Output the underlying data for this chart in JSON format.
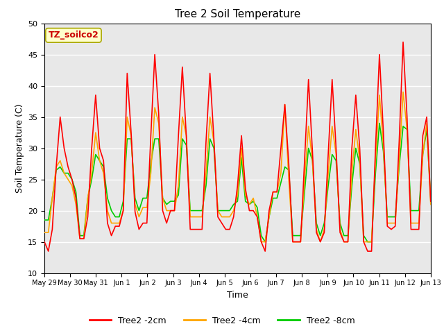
{
  "title": "Tree 2 Soil Temperature",
  "xlabel": "Time",
  "ylabel": "Soil Temperature (C)",
  "ylim": [
    10,
    50
  ],
  "annotation_text": "TZ_soilco2",
  "annotation_color": "#cc0000",
  "annotation_bg": "#ffffcc",
  "bg_color": "#e8e8e8",
  "grid_color": "#ffffff",
  "series": {
    "Tree2 -2cm": {
      "color": "#ff0000",
      "lw": 1.2
    },
    "Tree2 -4cm": {
      "color": "#ffa500",
      "lw": 1.2
    },
    "Tree2 -8cm": {
      "color": "#00cc00",
      "lw": 1.2
    }
  },
  "x_tick_labels": [
    "May 29",
    "May 30",
    "May 31",
    "Jun 1",
    "Jun 2",
    "Jun 3",
    "Jun 4",
    "Jun 5",
    "Jun 6",
    "Jun 7",
    "Jun 8",
    "Jun 9",
    "Jun 10",
    "Jun 11",
    "Jun 12",
    "Jun 13"
  ],
  "x_tick_positions": [
    0,
    1,
    2,
    3,
    4,
    5,
    6,
    7,
    8,
    9,
    10,
    11,
    12,
    13,
    14,
    15
  ],
  "data_2cm": [
    15,
    13.5,
    17,
    27,
    35,
    30,
    27,
    25,
    22,
    15.5,
    15.5,
    19,
    30,
    38.5,
    30,
    28,
    18,
    16,
    17.5,
    17.5,
    20,
    42,
    32.5,
    19.8,
    17,
    18,
    18,
    32,
    45,
    35.5,
    20,
    18,
    20,
    20,
    32,
    43,
    32,
    17,
    17,
    17,
    17,
    31,
    42,
    31.5,
    19,
    18,
    17,
    17,
    19,
    24,
    32,
    23.5,
    20,
    20,
    19,
    15,
    13.5,
    20,
    23,
    23,
    30,
    37,
    27.5,
    15,
    15,
    15,
    28,
    41,
    29.5,
    16.5,
    15,
    16.5,
    29,
    41,
    30,
    16.5,
    15,
    15,
    30,
    38.5,
    30,
    15,
    13.5,
    13.5,
    30,
    45,
    32.5,
    17.5,
    17,
    17.5,
    31,
    47,
    35,
    17,
    17,
    17,
    32,
    35,
    21.5
  ],
  "data_4cm": [
    16.5,
    16.5,
    22,
    27,
    28,
    26,
    25,
    24,
    21,
    15.5,
    15.5,
    22,
    26,
    32.5,
    28,
    26,
    20,
    18,
    18,
    18,
    20,
    35,
    32,
    21,
    19,
    20.5,
    20.5,
    26,
    36.5,
    34,
    22,
    20,
    20,
    20,
    24,
    35,
    32,
    19,
    19,
    19,
    19,
    26,
    35,
    31,
    20,
    19,
    19,
    19,
    20,
    22.5,
    30,
    22.5,
    21,
    22,
    19,
    15,
    15,
    19,
    23,
    23,
    26,
    37,
    25,
    15,
    15,
    15,
    25,
    33.5,
    28,
    17,
    15,
    17,
    26,
    33.5,
    29,
    17,
    15,
    15,
    26,
    33,
    28,
    15,
    15,
    15,
    28,
    38.5,
    30.5,
    18,
    18,
    18,
    28,
    39,
    33,
    18,
    18,
    18,
    29,
    34,
    21
  ],
  "data_8cm": [
    18.5,
    18.5,
    22,
    26.5,
    27,
    26,
    26,
    25,
    23,
    16,
    16,
    22,
    25,
    29,
    28,
    27,
    22,
    20,
    19,
    19,
    21.5,
    31.5,
    31.5,
    22,
    20,
    22,
    22,
    27.5,
    31.5,
    31.5,
    22,
    21,
    21.5,
    21.5,
    22.5,
    31.5,
    30.5,
    20,
    20,
    20,
    20,
    24,
    31.5,
    30,
    20,
    20,
    20,
    20,
    21,
    21.5,
    28.5,
    21.5,
    21,
    21.5,
    20.5,
    16,
    15,
    19,
    22,
    22,
    24.5,
    27,
    26.5,
    16,
    16,
    16,
    23,
    30,
    28,
    18,
    16,
    18,
    24,
    29,
    28,
    18,
    16,
    16,
    24,
    30,
    27.5,
    16,
    15,
    15,
    26,
    34,
    29.5,
    19,
    19,
    19,
    27,
    33.5,
    33,
    20,
    20,
    20,
    29,
    33,
    22
  ]
}
